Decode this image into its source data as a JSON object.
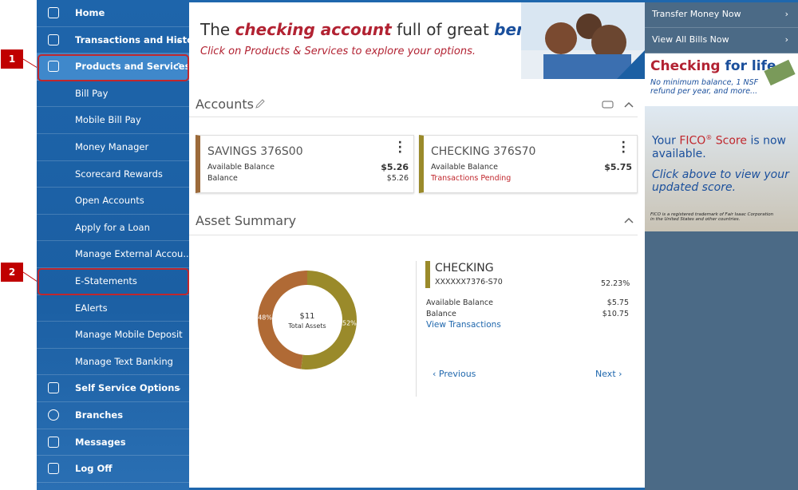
{
  "callouts": [
    "1",
    "2"
  ],
  "sidebar": {
    "items": [
      "Home",
      "Transactions and History",
      "Products and Services",
      "Bill Pay",
      "Mobile Bill Pay",
      "Money Manager",
      "Scorecard Rewards",
      "Open Accounts",
      "Apply for a Loan",
      "Manage External Accou...",
      "E-Statements",
      "EAlerts",
      "Manage Mobile Deposit",
      "Manage Text Banking",
      "Self Service Options",
      "Branches",
      "Messages",
      "Log Off"
    ]
  },
  "banner": {
    "headline": [
      "The ",
      "checking account",
      " full of great ",
      "benefits."
    ],
    "subtitle": "Click on Products & Services to explore your options."
  },
  "accounts": {
    "title": "Accounts",
    "cards": [
      {
        "name": "SAVINGS 376S00",
        "line1_label": "Available Balance",
        "line1_value": "$5.26",
        "line2_label": "Balance",
        "line2_value": "$5.26"
      },
      {
        "name": "CHECKING 376S70",
        "line1_label": "Available Balance",
        "line1_value": "$5.75",
        "line2_label": "Transactions Pending"
      }
    ]
  },
  "asset_summary": {
    "title": "Asset Summary",
    "chart_data": {
      "type": "donut",
      "center_value": "$11",
      "center_label": "Total Assets",
      "values": [
        48,
        52
      ],
      "value_labels": [
        "48%",
        "52%"
      ],
      "colors": [
        "#b06a35",
        "#9a8a2a"
      ]
    },
    "detail": {
      "name": "CHECKING",
      "number": "XXXXXX7376-S70",
      "percent": "52.23%",
      "rows": [
        [
          "Available Balance",
          "$5.75"
        ],
        [
          "Balance",
          "$10.75"
        ]
      ],
      "link": "View Transactions",
      "previous": "Previous",
      "next": "Next"
    }
  },
  "right_panel": {
    "links": [
      "Transfer Money Now",
      "View All Bills Now"
    ],
    "ad1": {
      "title": [
        "Checking",
        " for life"
      ],
      "text": "No minimum balance, 1 NSF refund per year, and more..."
    },
    "ad2": {
      "title": [
        "Your ",
        "FICO",
        "®",
        " Score",
        " is now available."
      ],
      "text": "Click above to view your updated score.",
      "fine_print": "FICO is a registered trademark of Fair Isaac Corporation in the United States and other countries."
    }
  }
}
